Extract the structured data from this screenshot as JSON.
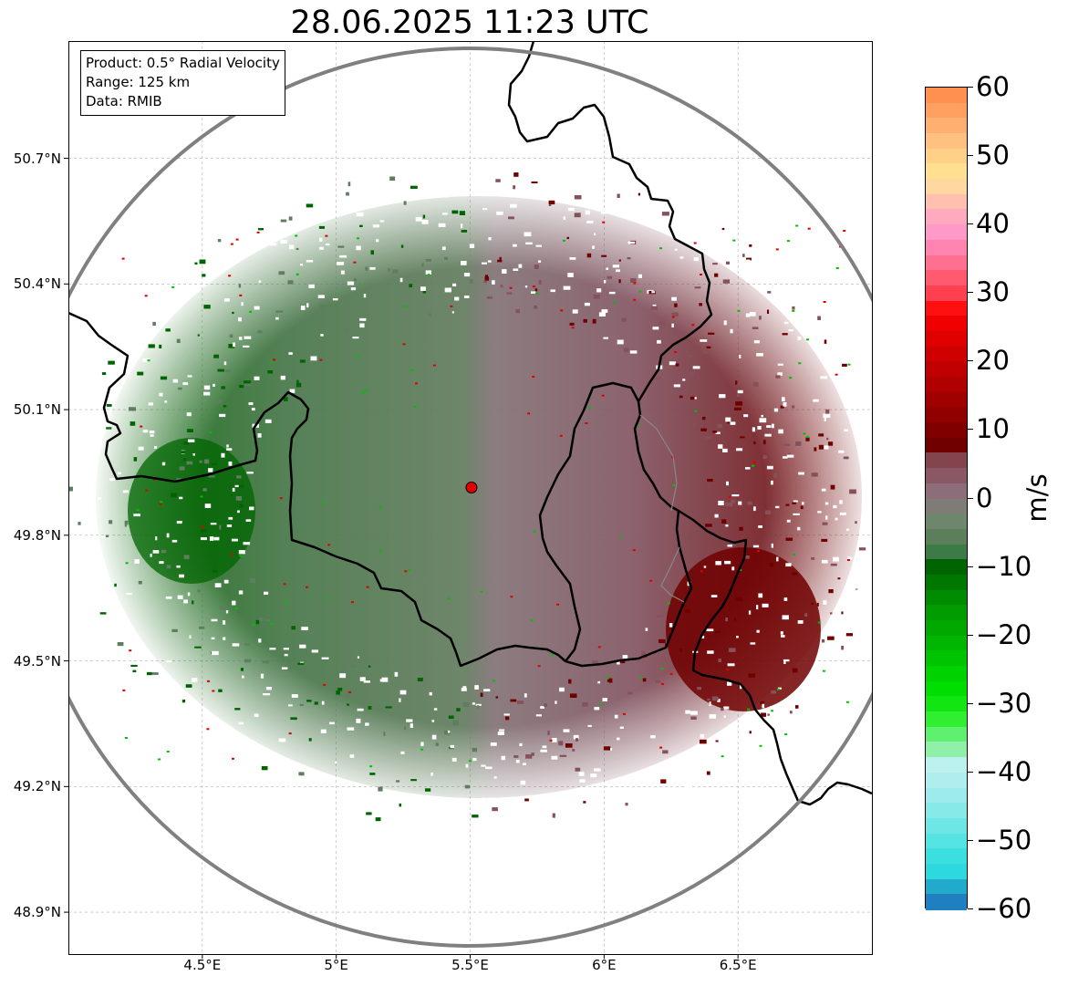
{
  "title": "28.06.2025 11:23 UTC",
  "info_box": {
    "product": "Product: 0.5° Radial Velocity",
    "range": "Range: 125 km",
    "data": "Data: RMIB"
  },
  "map": {
    "lat_ticks": [
      "50.7°N",
      "50.4°N",
      "50.1°N",
      "49.8°N",
      "49.5°N",
      "49.2°N",
      "48.9°N"
    ],
    "lon_ticks": [
      "4.5°E",
      "5°E",
      "5.5°E",
      "6°E",
      "6.5°E"
    ],
    "lat_values": [
      50.7,
      50.4,
      50.1,
      49.8,
      49.5,
      49.2,
      48.9
    ],
    "lon_values": [
      4.5,
      5.0,
      5.5,
      6.0,
      6.5
    ],
    "extent": {
      "lon_min": 4.0,
      "lon_max": 7.0,
      "lat_min": 48.8,
      "lat_max": 50.98
    },
    "radar_site": {
      "lon": 5.505,
      "lat": 49.914
    },
    "radar_color": "#e00000",
    "range_ring_color": "#808080",
    "border_color": "#000000"
  },
  "colorbar": {
    "label": "m/s",
    "ticks": [
      "60",
      "50",
      "40",
      "30",
      "20",
      "10",
      "0",
      "−10",
      "−20",
      "−30",
      "−40",
      "−50",
      "−60"
    ],
    "values": [
      60,
      50,
      40,
      30,
      20,
      10,
      0,
      -10,
      -20,
      -30,
      -40,
      -50,
      -60
    ],
    "vmin": -60,
    "vmax": 60,
    "colors": [
      "#1f7fc0",
      "#22aacc",
      "#2dd9df",
      "#3cdfe0",
      "#55e3e3",
      "#6fe6e6",
      "#88e9e9",
      "#9eebec",
      "#aeeeee",
      "#bcf1f0",
      "#90f0a8",
      "#60f070",
      "#30ee30",
      "#12e612",
      "#00de00",
      "#00d200",
      "#00c400",
      "#00b600",
      "#00a800",
      "#009c00",
      "#008c00",
      "#007800",
      "#006400",
      "#3c7a48",
      "#5a7f5a",
      "#6e866b",
      "#7f7c78",
      "#8b6e7a",
      "#8a5865",
      "#84444e",
      "#700000",
      "#800000",
      "#900000",
      "#a00000",
      "#b00000",
      "#c00000",
      "#d00000",
      "#e00000",
      "#f00000",
      "#ff1010",
      "#ff4050",
      "#ff5a70",
      "#ff7090",
      "#ff85b0",
      "#ff99c8",
      "#ffaabe",
      "#ffc0b0",
      "#ffd8a0",
      "#ffe090",
      "#ffd088",
      "#ffc080",
      "#ffb070",
      "#ffa060",
      "#ff9050"
    ],
    "velocity_colors": {
      "strong_inbound": "#006400",
      "inbound": "#5f7d5f",
      "near_zero": "#7e7474",
      "outbound": "#85525c",
      "strong_outbound": "#700000",
      "speckle_red": "#e00000",
      "speckle_green": "#00c000"
    }
  }
}
